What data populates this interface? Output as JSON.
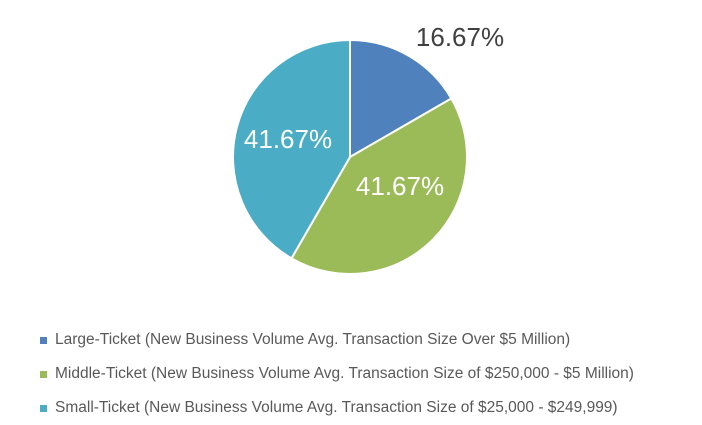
{
  "chart_data": {
    "type": "pie",
    "title": "",
    "start_angle_deg": 0,
    "direction": "clockwise",
    "slices": [
      {
        "name": "Large-Ticket (New Business Volume Avg. Transaction Size Over $5 Million)",
        "value": 16.67,
        "label": "16.67%",
        "color": "#4F81BD",
        "label_color": "#404040",
        "label_position": "outside"
      },
      {
        "name": "Middle-Ticket (New Business Volume Avg. Transaction Size of $250,000 - $5 Million)",
        "value": 41.67,
        "label": "41.67%",
        "color": "#9BBB59",
        "label_color": "#FFFFFF",
        "label_position": "inside"
      },
      {
        "name": "Small-Ticket (New Business Volume Avg. Transaction Size of $25,000 - $249,999)",
        "value": 41.67,
        "label": "41.67%",
        "color": "#4BACC6",
        "label_color": "#FFFFFF",
        "label_position": "inside"
      }
    ],
    "legend_position": "bottom-left"
  }
}
